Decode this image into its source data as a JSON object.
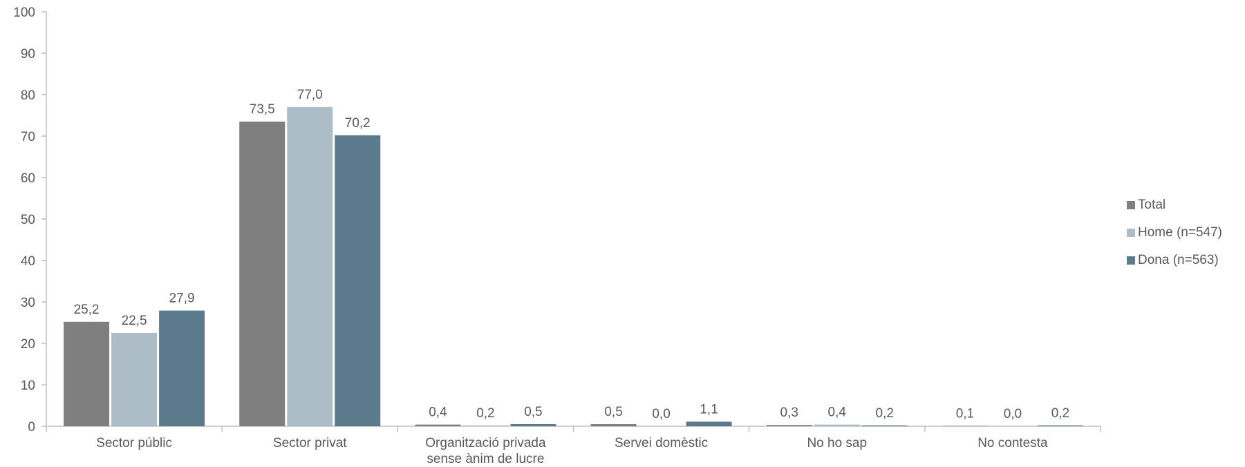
{
  "chart_data": {
    "type": "bar",
    "categories": [
      [
        "Sector públic"
      ],
      [
        "Sector privat"
      ],
      [
        "Organització privada",
        "sense ànim de lucre"
      ],
      [
        "Servei domèstic"
      ],
      [
        "No ho sap"
      ],
      [
        "No contesta"
      ]
    ],
    "series": [
      {
        "name": "Total",
        "color": "#7f7f7f",
        "values": [
          25.2,
          73.5,
          0.4,
          0.5,
          0.3,
          0.1
        ],
        "labels": [
          "25,2",
          "73,5",
          "0,4",
          "0,5",
          "0,3",
          "0,1"
        ]
      },
      {
        "name": "Home (n=547)",
        "color": "#adbdc7",
        "values": [
          22.5,
          77.0,
          0.2,
          0.0,
          0.4,
          0.0
        ],
        "labels": [
          "22,5",
          "77,0",
          "0,2",
          "0,0",
          "0,4",
          "0,0"
        ]
      },
      {
        "name": "Dona (n=563)",
        "color": "#5a7b8c",
        "values": [
          27.9,
          70.2,
          0.5,
          1.1,
          0.2,
          0.2
        ],
        "labels": [
          "27,9",
          "70,2",
          "0,5",
          "1,1",
          "0,2",
          "0,2"
        ]
      }
    ],
    "ylim": [
      0,
      100
    ],
    "yticks": [
      0,
      10,
      20,
      30,
      40,
      50,
      60,
      70,
      80,
      90,
      100
    ],
    "legend_position": "right",
    "grid": false
  }
}
